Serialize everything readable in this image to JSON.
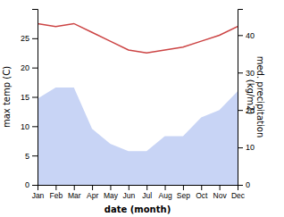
{
  "chart_data": {
    "type": "line",
    "categories": [
      "Jan",
      "Feb",
      "Mar",
      "Apr",
      "May",
      "Jun",
      "Jul",
      "Aug",
      "Sep",
      "Oct",
      "Nov",
      "Dec"
    ],
    "series": [
      {
        "type": "area",
        "axis": "y2",
        "color": "#c8d4f5",
        "values": [
          23,
          26,
          26,
          15,
          11,
          9,
          9,
          13,
          13,
          18,
          20,
          25
        ]
      },
      {
        "type": "line",
        "color": "#cc4444",
        "values": [
          27.5,
          27.0,
          27.5,
          26.0,
          24.5,
          23.0,
          22.5,
          23.0,
          23.5,
          24.5,
          25.5,
          27.0
        ]
      }
    ],
    "xlabel": "date (month)",
    "ylabel": "max temp (C)",
    "y2label": "med. precipitation\n(kg/m2)",
    "ylim": [
      0,
      30
    ],
    "yticks": [
      0,
      5,
      10,
      15,
      20,
      25
    ],
    "y2lim": [
      0,
      47
    ],
    "y2ticks": [
      0,
      10,
      20,
      30,
      40
    ],
    "grid": false
  }
}
